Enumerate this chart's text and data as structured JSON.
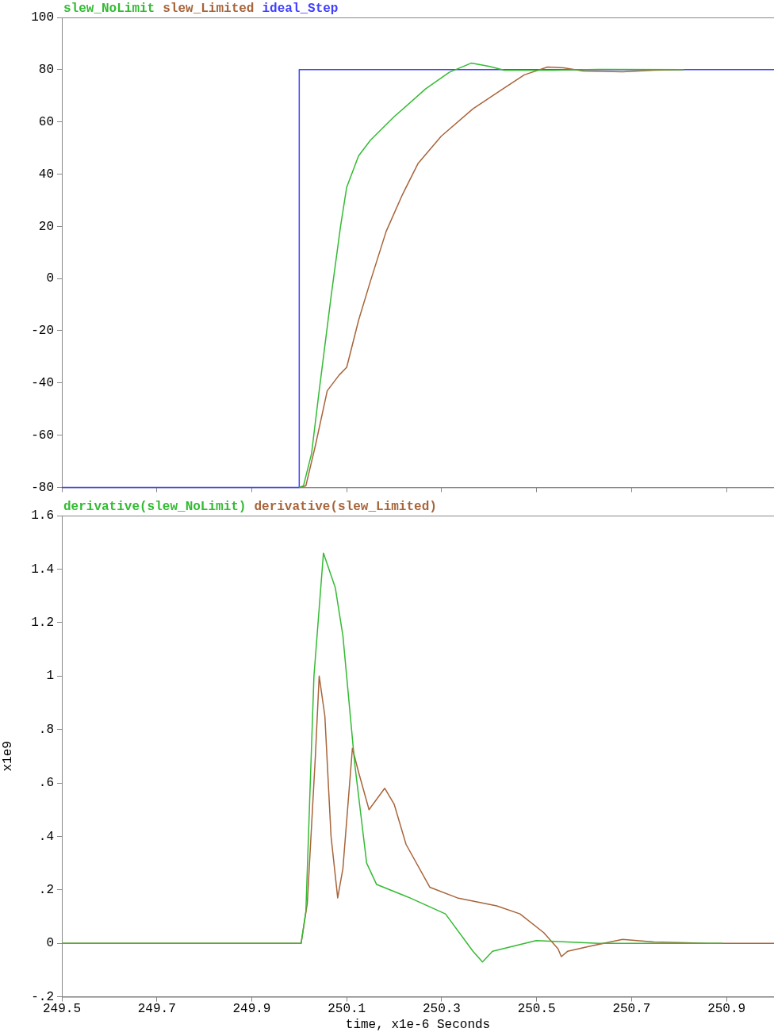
{
  "chart_data": [
    {
      "type": "line",
      "legend": "top left",
      "tick_labels": "y",
      "marker": "none",
      "xlim": [
        249.5,
        251
      ],
      "xticks": [
        249.5,
        249.7,
        249.9,
        250.1,
        250.3,
        250.5,
        250.7,
        250.9
      ],
      "ylim": [
        -80,
        100
      ],
      "yticks": [
        -80,
        -60,
        -40,
        -20,
        0,
        20,
        40,
        60,
        80,
        100
      ],
      "series": [
        {
          "name": "slew_NoLimit",
          "color": "#33bb33",
          "x": [
            250.0,
            250.009,
            250.026,
            250.042,
            250.067,
            250.087,
            250.1,
            250.125,
            250.15,
            250.2,
            250.266,
            250.316,
            250.362,
            250.399,
            250.432,
            250.532,
            250.631,
            250.81
          ],
          "values": [
            -80,
            -79.4,
            -67,
            -43,
            -7,
            20,
            35,
            47,
            53,
            62,
            72.6,
            79,
            82.5,
            81.3,
            79.8,
            79.8,
            80.1,
            80
          ]
        },
        {
          "name": "slew_Limited",
          "color": "#a8643a",
          "x": [
            250.0,
            250.014,
            250.034,
            250.059,
            250.084,
            250.1,
            250.125,
            250.15,
            250.183,
            250.217,
            250.25,
            250.299,
            250.366,
            250.432,
            250.474,
            250.523,
            250.557,
            250.598,
            250.681,
            250.747,
            250.81
          ],
          "values": [
            -80,
            -79.4,
            -64,
            -43,
            -37,
            -34,
            -16,
            -1,
            18,
            32,
            44,
            54.5,
            65,
            73,
            78,
            81,
            80.7,
            79.5,
            79.2,
            79.8,
            80
          ]
        },
        {
          "name": "ideal_Step",
          "color": "#4040ff",
          "x": [
            249.5,
            250.0,
            250.0,
            251
          ],
          "values": [
            -80,
            -80,
            80,
            80
          ]
        }
      ]
    },
    {
      "type": "line",
      "legend": "top left",
      "marker": "none",
      "xlabel": "time, x1e-6 Seconds",
      "ylabel": "x1e9",
      "xlim": [
        249.5,
        251
      ],
      "xticks": [
        249.5,
        249.7,
        249.9,
        250.1,
        250.3,
        250.5,
        250.7,
        250.9
      ],
      "ylim": [
        -0.2,
        1.6
      ],
      "yticks": [
        {
          "value": -0.2,
          "label": "-.2"
        },
        0,
        {
          "value": 0.2,
          "label": ".2"
        },
        {
          "value": 0.4,
          "label": ".4"
        },
        {
          "value": 0.6,
          "label": ".6"
        },
        {
          "value": 0.8,
          "label": ".8"
        },
        1,
        1.2,
        1.4,
        1.6
      ],
      "series": [
        {
          "name": "derivative(slew_NoLimit)",
          "color": "#33bb33",
          "x": [
            249.5,
            250.004,
            250.014,
            250.031,
            250.051,
            250.076,
            250.092,
            250.117,
            250.142,
            250.163,
            250.233,
            250.308,
            250.366,
            250.386,
            250.407,
            250.499,
            250.631,
            250.863,
            250.892
          ],
          "values": [
            0,
            0,
            0.12,
            1.0,
            1.46,
            1.33,
            1.15,
            0.67,
            0.3,
            0.22,
            0.17,
            0.11,
            -0.03,
            -0.07,
            -0.03,
            0.01,
            0,
            0,
            0
          ]
        },
        {
          "name": "derivative(slew_Limited)",
          "color": "#a8643a",
          "x": [
            249.5,
            250.004,
            250.017,
            250.034,
            250.042,
            250.054,
            250.067,
            250.081,
            250.092,
            250.112,
            250.125,
            250.147,
            250.18,
            250.2,
            250.225,
            250.275,
            250.333,
            250.416,
            250.465,
            250.515,
            250.545,
            250.552,
            250.565,
            250.615,
            250.681,
            250.747,
            250.863,
            251
          ],
          "values": [
            0,
            0,
            0.15,
            0.7,
            1.0,
            0.85,
            0.4,
            0.17,
            0.28,
            0.73,
            0.64,
            0.5,
            0.58,
            0.52,
            0.37,
            0.21,
            0.17,
            0.14,
            0.11,
            0.04,
            -0.02,
            -0.05,
            -0.03,
            -0.01,
            0.015,
            0.005,
            0,
            0
          ]
        }
      ]
    }
  ]
}
